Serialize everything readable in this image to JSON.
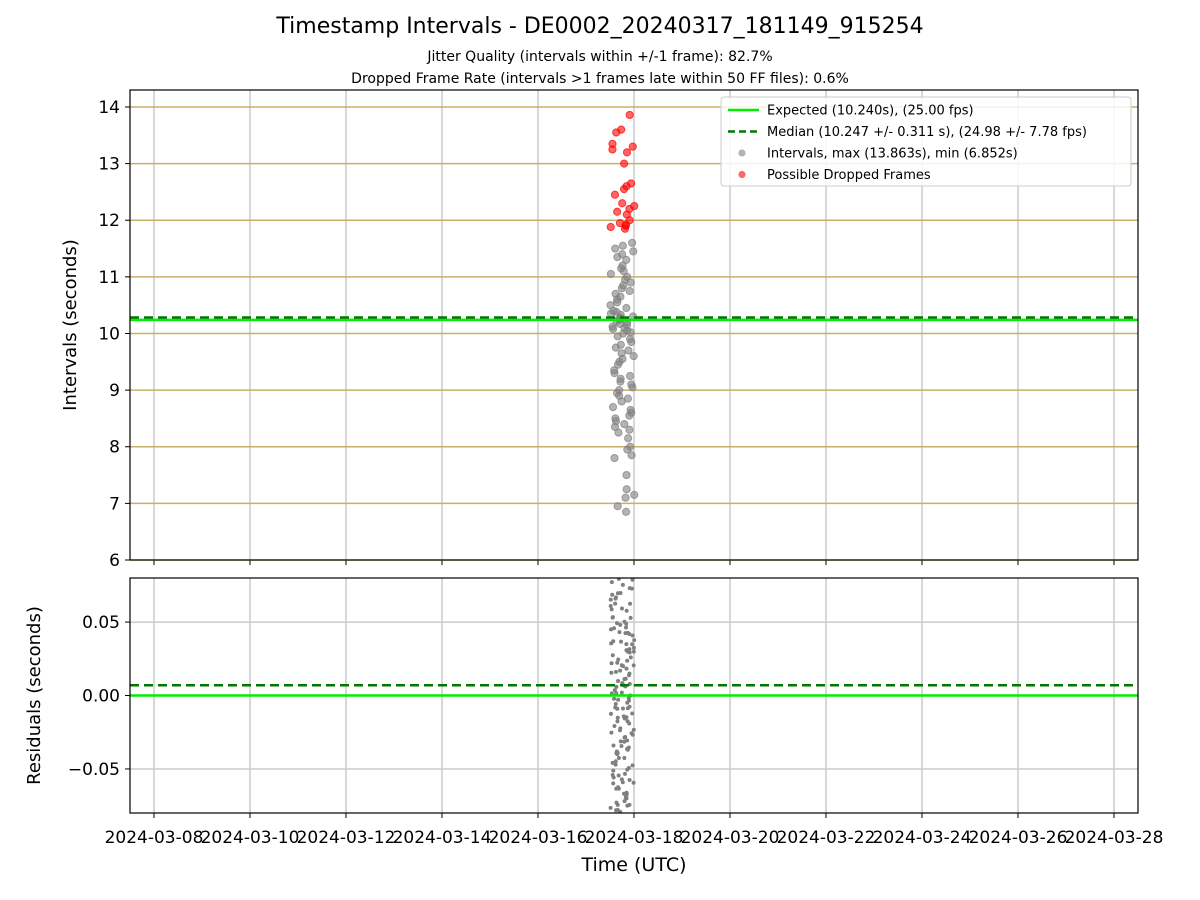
{
  "title": "Timestamp Intervals - DE0002_20240317_181149_915254",
  "subtitle_1": "Jitter Quality (intervals within +/-1 frame): 82.7%",
  "subtitle_2": "Dropped Frame Rate (intervals >1 frames late within 50 FF files): 0.6%",
  "colors": {
    "expected": "#00ee00",
    "median": "#007700",
    "intervals": "#808080",
    "dropped": "#ff0000",
    "hgrid_top": "#c8b06a",
    "grid": "#cccccc"
  },
  "chart_data": [
    {
      "type": "scatter",
      "panel": "intervals",
      "ylabel": "Intervals (seconds)",
      "xlabel": "",
      "xlim": [
        "2024-03-07 12:00",
        "2024-03-28 12:00"
      ],
      "ylim": [
        6,
        14.3
      ],
      "yticks": [
        6,
        7,
        8,
        9,
        10,
        11,
        12,
        13,
        14
      ],
      "ytick_labels": [
        "6",
        "7",
        "8",
        "9",
        "10",
        "11",
        "12",
        "13",
        "14"
      ],
      "grid": true,
      "legend_position": "top-right",
      "legend": [
        "Expected (10.240s), (25.00 fps)",
        "Median (10.247 +/- 0.311 s), (24.98 +/- 7.78 fps)",
        "Intervals, max (13.863s), min (6.852s)",
        "Possible Dropped Frames"
      ],
      "expected_value": 10.24,
      "median_value": 10.247,
      "series": [
        {
          "name": "Intervals, max (13.863s), min (6.852s)",
          "x_center": "2024-03-17 18:11",
          "values": [
            6.85,
            6.95,
            7.1,
            7.15,
            7.25,
            7.5,
            7.8,
            7.85,
            7.95,
            8.0,
            8.15,
            8.25,
            8.3,
            8.35,
            8.4,
            8.45,
            8.5,
            8.55,
            8.6,
            8.65,
            8.7,
            8.8,
            8.85,
            8.9,
            8.95,
            9.0,
            9.05,
            9.1,
            9.15,
            9.2,
            9.25,
            9.3,
            9.35,
            9.45,
            9.5,
            9.55,
            9.6,
            9.65,
            9.7,
            9.75,
            9.8,
            9.85,
            9.9,
            9.95,
            10.0,
            10.02,
            10.05,
            10.08,
            10.1,
            10.12,
            10.15,
            10.17,
            10.2,
            10.22,
            10.24,
            10.26,
            10.28,
            10.3,
            10.33,
            10.35,
            10.38,
            10.4,
            10.45,
            10.5,
            10.55,
            10.6,
            10.65,
            10.7,
            10.75,
            10.8,
            10.85,
            10.9,
            10.95,
            11.0,
            11.05,
            11.1,
            11.15,
            11.2,
            11.3,
            11.35,
            11.4,
            11.45,
            11.5,
            11.55,
            11.6
          ]
        },
        {
          "name": "Possible Dropped Frames",
          "x_center": "2024-03-17 18:11",
          "values": [
            11.85,
            11.88,
            11.9,
            11.92,
            11.95,
            12.0,
            12.1,
            12.15,
            12.2,
            12.25,
            12.3,
            12.45,
            12.55,
            12.6,
            12.65,
            13.0,
            13.2,
            13.25,
            13.3,
            13.35,
            13.55,
            13.6,
            13.86
          ]
        }
      ]
    },
    {
      "type": "scatter",
      "panel": "residuals",
      "ylabel": "Residuals (seconds)",
      "xlabel": "Time (UTC)",
      "xlim": [
        "2024-03-07 12:00",
        "2024-03-28 12:00"
      ],
      "ylim": [
        -0.08,
        0.08
      ],
      "yticks": [
        -0.05,
        0,
        0.05
      ],
      "ytick_labels": [
        "−0.05",
        "0.00",
        "0.05"
      ],
      "xticks": [
        "2024-03-08",
        "2024-03-10",
        "2024-03-12",
        "2024-03-14",
        "2024-03-16",
        "2024-03-18",
        "2024-03-20",
        "2024-03-22",
        "2024-03-24",
        "2024-03-26",
        "2024-03-28"
      ],
      "grid": true,
      "expected_value": 0.0,
      "median_value": 0.007,
      "series": [
        {
          "name": "",
          "x_center": "2024-03-17 18:11",
          "values": [
            -0.079,
            -0.076,
            -0.073,
            -0.07,
            -0.066,
            -0.063,
            -0.06,
            -0.057,
            -0.053,
            -0.05,
            -0.047,
            -0.044,
            -0.04,
            -0.037,
            -0.034,
            -0.031,
            -0.028,
            -0.025,
            -0.022,
            -0.019,
            -0.016,
            -0.013,
            -0.01,
            -0.007,
            -0.004,
            -0.001,
            0.002,
            0.005,
            0.008,
            0.011,
            0.014,
            0.017,
            0.02,
            0.023,
            0.026,
            0.029,
            0.032,
            0.035,
            0.038,
            0.041,
            0.044,
            0.047,
            0.05,
            0.054,
            0.058,
            0.062,
            0.066,
            0.07,
            0.074,
            0.078
          ]
        }
      ]
    }
  ]
}
